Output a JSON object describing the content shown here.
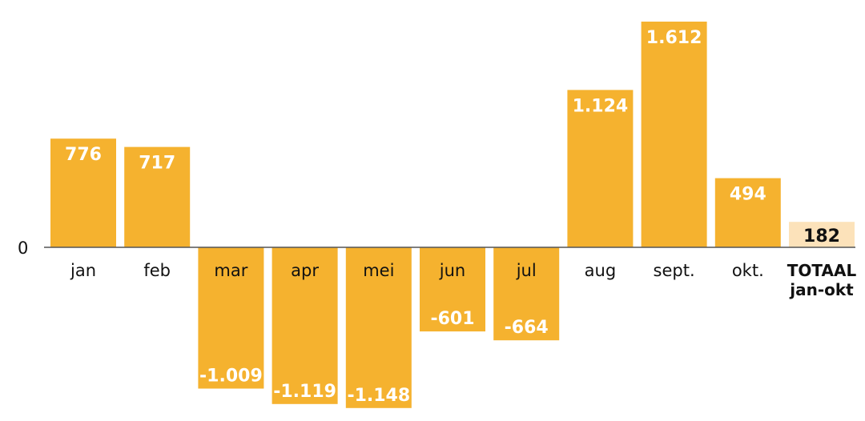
{
  "chart_data": {
    "type": "bar",
    "title": "",
    "xlabel": "",
    "ylabel": "",
    "categories": [
      "jan",
      "feb",
      "mar",
      "apr",
      "mei",
      "jun",
      "jul",
      "aug",
      "sept.",
      "okt.",
      "TOTAAL jan-okt"
    ],
    "category_lines": [
      [
        "jan"
      ],
      [
        "feb"
      ],
      [
        "mar"
      ],
      [
        "apr"
      ],
      [
        "mei"
      ],
      [
        "jun"
      ],
      [
        "jul"
      ],
      [
        "aug"
      ],
      [
        "sept."
      ],
      [
        "okt."
      ],
      [
        "TOTAAL",
        "jan-okt"
      ]
    ],
    "values": [
      776,
      717,
      -1009,
      -1119,
      -1148,
      -601,
      -664,
      1124,
      1612,
      494,
      182
    ],
    "value_labels": [
      "776",
      "717",
      "-1.009",
      "-1.119",
      "-1.148",
      "-601",
      "-664",
      "1.124",
      "1.612",
      "494",
      "182"
    ],
    "y_tick_labels": [
      "0"
    ],
    "ylim": [
      -1150,
      1612
    ],
    "grid": false,
    "legend": "none",
    "colors": {
      "bar": "#F5B22F",
      "total_bar": "#FCE2BA",
      "label_on_bar": "#ffffff",
      "label_on_total": "#111111",
      "axis": "#555555"
    }
  }
}
